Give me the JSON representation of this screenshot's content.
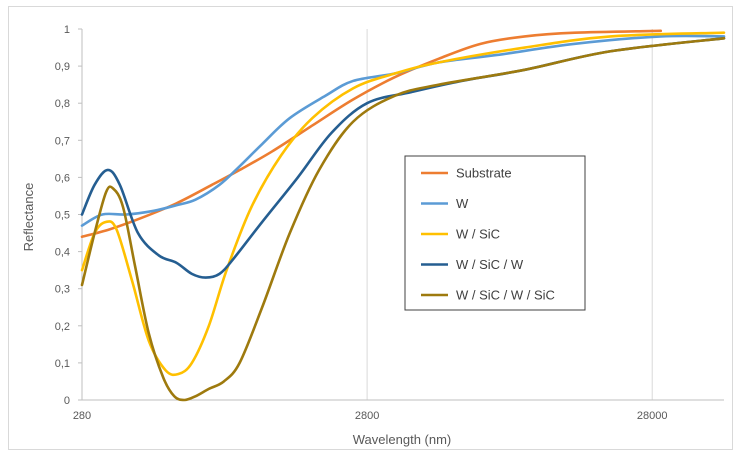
{
  "chart_data": {
    "type": "line",
    "title": "",
    "xlabel": "Wavelength  (nm)",
    "ylabel": "Reflectance",
    "x_scale": "log",
    "xlim": [
      280,
      50000
    ],
    "ylim": [
      0,
      1
    ],
    "x_ticks": [
      {
        "value": 280,
        "label": "280"
      },
      {
        "value": 2800,
        "label": "2800"
      },
      {
        "value": 28000,
        "label": "28000"
      }
    ],
    "y_ticks": [
      {
        "value": 0,
        "label": "0"
      },
      {
        "value": 0.1,
        "label": "0,1"
      },
      {
        "value": 0.2,
        "label": "0,2"
      },
      {
        "value": 0.3,
        "label": "0,3"
      },
      {
        "value": 0.4,
        "label": "0,4"
      },
      {
        "value": 0.5,
        "label": "0,5"
      },
      {
        "value": 0.6,
        "label": "0,6"
      },
      {
        "value": 0.7,
        "label": "0,7"
      },
      {
        "value": 0.8,
        "label": "0,8"
      },
      {
        "value": 0.9,
        "label": "0,9"
      },
      {
        "value": 1,
        "label": "1"
      }
    ],
    "grid": "vertical major gridlines",
    "legend_position": "center-right",
    "series": [
      {
        "name": "Substrate",
        "color": "#ED7D31",
        "points": [
          [
            280,
            0.44
          ],
          [
            350,
            0.46
          ],
          [
            450,
            0.49
          ],
          [
            600,
            0.53
          ],
          [
            800,
            0.58
          ],
          [
            1000,
            0.62
          ],
          [
            1300,
            0.67
          ],
          [
            1800,
            0.74
          ],
          [
            2500,
            0.81
          ],
          [
            3500,
            0.87
          ],
          [
            5000,
            0.92
          ],
          [
            7000,
            0.96
          ],
          [
            10000,
            0.98
          ],
          [
            15000,
            0.99
          ],
          [
            30000,
            0.995
          ]
        ]
      },
      {
        "name": "W",
        "color": "#5B9BD5",
        "points": [
          [
            280,
            0.47
          ],
          [
            330,
            0.5
          ],
          [
            400,
            0.5
          ],
          [
            500,
            0.51
          ],
          [
            600,
            0.525
          ],
          [
            700,
            0.54
          ],
          [
            850,
            0.58
          ],
          [
            1000,
            0.63
          ],
          [
            1200,
            0.69
          ],
          [
            1500,
            0.76
          ],
          [
            2000,
            0.82
          ],
          [
            2500,
            0.86
          ],
          [
            3500,
            0.88
          ],
          [
            5000,
            0.91
          ],
          [
            8000,
            0.93
          ],
          [
            15000,
            0.96
          ],
          [
            30000,
            0.98
          ],
          [
            50000,
            0.98
          ]
        ]
      },
      {
        "name": "W / SiC",
        "color": "#FFC000",
        "points": [
          [
            280,
            0.35
          ],
          [
            310,
            0.45
          ],
          [
            340,
            0.48
          ],
          [
            370,
            0.46
          ],
          [
            420,
            0.32
          ],
          [
            480,
            0.16
          ],
          [
            550,
            0.08
          ],
          [
            610,
            0.07
          ],
          [
            680,
            0.1
          ],
          [
            780,
            0.2
          ],
          [
            900,
            0.35
          ],
          [
            1100,
            0.52
          ],
          [
            1400,
            0.66
          ],
          [
            1800,
            0.76
          ],
          [
            2500,
            0.84
          ],
          [
            3500,
            0.88
          ],
          [
            5000,
            0.91
          ],
          [
            10000,
            0.95
          ],
          [
            20000,
            0.98
          ],
          [
            50000,
            0.99
          ]
        ]
      },
      {
        "name": "W / SiC / W",
        "color": "#255E91",
        "points": [
          [
            280,
            0.5
          ],
          [
            310,
            0.58
          ],
          [
            345,
            0.62
          ],
          [
            380,
            0.58
          ],
          [
            440,
            0.45
          ],
          [
            520,
            0.39
          ],
          [
            600,
            0.37
          ],
          [
            680,
            0.34
          ],
          [
            760,
            0.33
          ],
          [
            850,
            0.34
          ],
          [
            950,
            0.38
          ],
          [
            1200,
            0.48
          ],
          [
            1600,
            0.6
          ],
          [
            2100,
            0.72
          ],
          [
            2800,
            0.8
          ],
          [
            4000,
            0.83
          ],
          [
            6000,
            0.86
          ],
          [
            10000,
            0.89
          ],
          [
            20000,
            0.94
          ],
          [
            50000,
            0.975
          ]
        ]
      },
      {
        "name": "W / SiC / W / SiC",
        "color": "#9E7A0E",
        "points": [
          [
            280,
            0.31
          ],
          [
            310,
            0.45
          ],
          [
            340,
            0.56
          ],
          [
            360,
            0.57
          ],
          [
            390,
            0.52
          ],
          [
            430,
            0.36
          ],
          [
            480,
            0.18
          ],
          [
            540,
            0.06
          ],
          [
            590,
            0.01
          ],
          [
            640,
            0.0
          ],
          [
            700,
            0.01
          ],
          [
            780,
            0.03
          ],
          [
            880,
            0.05
          ],
          [
            1000,
            0.1
          ],
          [
            1200,
            0.25
          ],
          [
            1500,
            0.45
          ],
          [
            1900,
            0.62
          ],
          [
            2500,
            0.75
          ],
          [
            3500,
            0.82
          ],
          [
            5000,
            0.85
          ],
          [
            10000,
            0.89
          ],
          [
            20000,
            0.94
          ],
          [
            50000,
            0.975
          ]
        ]
      }
    ]
  }
}
